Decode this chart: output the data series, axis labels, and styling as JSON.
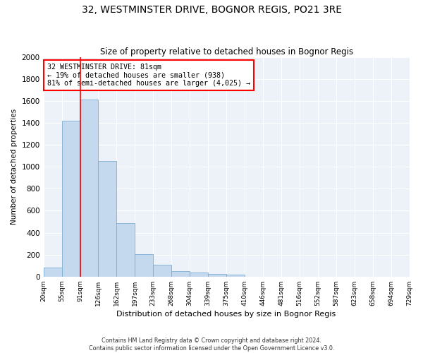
{
  "title": "32, WESTMINSTER DRIVE, BOGNOR REGIS, PO21 3RE",
  "subtitle": "Size of property relative to detached houses in Bognor Regis",
  "xlabel": "Distribution of detached houses by size in Bognor Regis",
  "ylabel": "Number of detached properties",
  "bar_values": [
    80,
    1420,
    1610,
    1050,
    490,
    205,
    105,
    50,
    35,
    25,
    20,
    0,
    0,
    0,
    0,
    0,
    0,
    0,
    0,
    0
  ],
  "x_labels": [
    "20sqm",
    "55sqm",
    "91sqm",
    "126sqm",
    "162sqm",
    "197sqm",
    "233sqm",
    "268sqm",
    "304sqm",
    "339sqm",
    "375sqm",
    "410sqm",
    "446sqm",
    "481sqm",
    "516sqm",
    "552sqm",
    "587sqm",
    "623sqm",
    "658sqm",
    "694sqm",
    "729sqm"
  ],
  "bar_color": "#c5d9ee",
  "bar_edge_color": "#7aaed6",
  "annotation_title": "32 WESTMINSTER DRIVE: 81sqm",
  "annotation_line1": "← 19% of detached houses are smaller (938)",
  "annotation_line2": "81% of semi-detached houses are larger (4,025) →",
  "vline_x": 2,
  "ylim": [
    0,
    2000
  ],
  "yticks": [
    0,
    200,
    400,
    600,
    800,
    1000,
    1200,
    1400,
    1600,
    1800,
    2000
  ],
  "bg_color": "#edf2f9",
  "grid_color": "#ffffff",
  "fig_bg_color": "#ffffff",
  "footer_line1": "Contains HM Land Registry data © Crown copyright and database right 2024.",
  "footer_line2": "Contains public sector information licensed under the Open Government Licence v3.0."
}
